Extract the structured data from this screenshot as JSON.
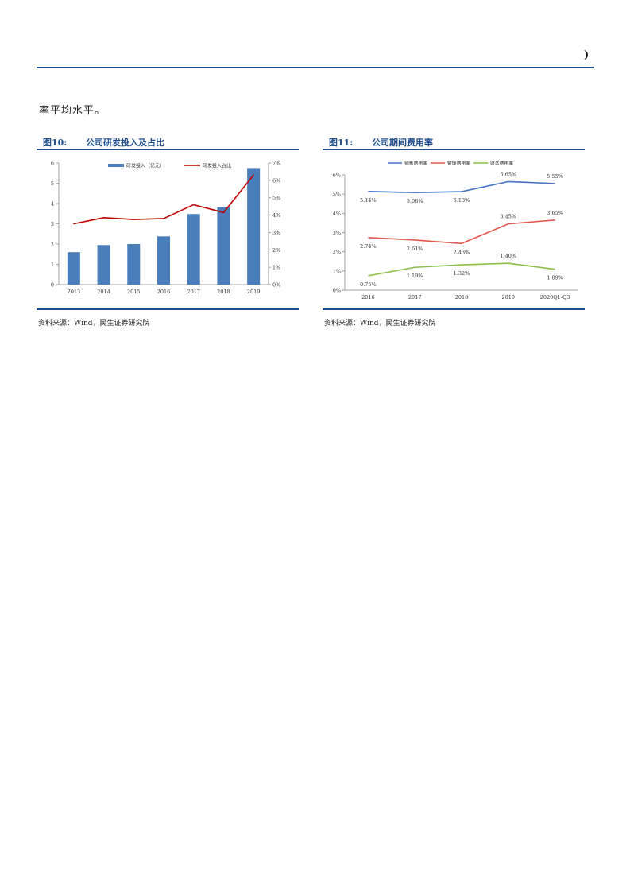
{
  "header": {
    "mark": ")"
  },
  "body": {
    "line": "率平均水平。"
  },
  "figure10": {
    "number": "图10:",
    "title": "公司研发投入及占比",
    "source": "资料来源：Wind，民生证券研究院"
  },
  "figure11": {
    "number": "图11:",
    "title": "公司期间费用率",
    "source": "资料来源：Wind，民生证券研究院"
  },
  "colors": {
    "brand": "#1f4e8c",
    "bar": "#4a7ebb",
    "rd_line": "#c00000",
    "sales": "#4472c4",
    "admin": "#e05a4f",
    "finance": "#8cbf4a"
  },
  "chart_data": [
    {
      "type": "bar",
      "categories": [
        "2013",
        "2014",
        "2015",
        "2016",
        "2017",
        "2018",
        "2019"
      ],
      "series": [
        {
          "name": "研发投入（亿元）",
          "type": "bar",
          "axis": "left",
          "values": [
            1.6,
            1.95,
            2.0,
            2.38,
            3.48,
            3.82,
            5.75
          ]
        },
        {
          "name": "研发投入占比",
          "type": "line",
          "axis": "right",
          "values": [
            3.5,
            3.85,
            3.75,
            3.8,
            4.6,
            4.15,
            6.3
          ]
        }
      ],
      "ylim": [
        0,
        6
      ],
      "y_ticks": [
        "0",
        "1",
        "2",
        "3",
        "4",
        "5",
        "6"
      ],
      "y2lim": [
        0,
        7
      ],
      "y2_ticks": [
        "0%",
        "1%",
        "2%",
        "3%",
        "4%",
        "5%",
        "6%",
        "7%"
      ],
      "legend": "top"
    },
    {
      "type": "line",
      "categories": [
        "2016",
        "2017",
        "2018",
        "2019",
        "2020Q1-Q3"
      ],
      "series": [
        {
          "name": "销售费用率",
          "values": [
            5.14,
            5.08,
            5.13,
            5.65,
            5.55
          ],
          "labels": [
            "5.14%",
            "5.08%",
            "5.13%",
            "5.65%",
            "5.55%"
          ]
        },
        {
          "name": "管理费用率",
          "values": [
            2.74,
            2.61,
            2.43,
            3.45,
            3.65
          ],
          "labels": [
            "2.74%",
            "2.61%",
            "2.43%",
            "3.45%",
            "3.65%"
          ]
        },
        {
          "name": "财务费用率",
          "values": [
            0.75,
            1.19,
            1.32,
            1.4,
            1.09
          ],
          "labels": [
            "0.75%",
            "1.19%",
            "1.32%",
            "1.40%",
            "1.09%"
          ]
        }
      ],
      "ylim": [
        0,
        6
      ],
      "y_ticks": [
        "0%",
        "1%",
        "2%",
        "3%",
        "4%",
        "5%",
        "6%"
      ],
      "legend": "top"
    }
  ]
}
